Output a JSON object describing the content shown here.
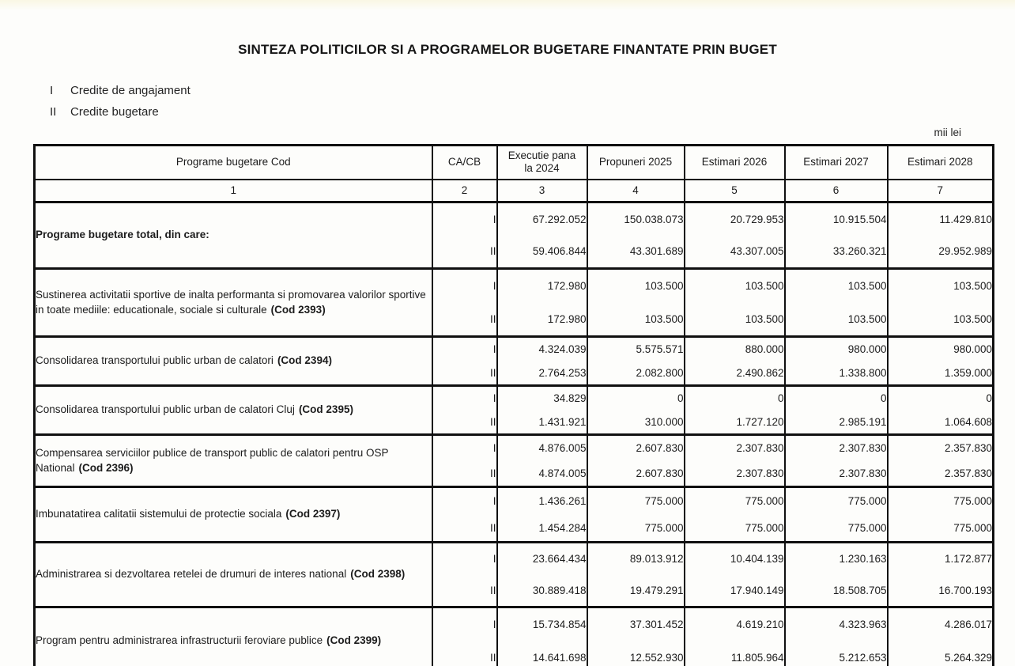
{
  "page": {
    "title": "SINTEZA POLITICILOR SI A PROGRAMELOR BUGETARE FINANTATE PRIN BUGET",
    "legend": [
      {
        "symbol": "I",
        "label": "Credite de angajament"
      },
      {
        "symbol": "II",
        "label": "Credite bugetare"
      }
    ],
    "unit_note": "mii lei"
  },
  "table": {
    "header": {
      "col1": "Programe bugetare  Cod",
      "col2": "CA/CB",
      "col3": "Executie pana\nla  2024",
      "col4": "Propuneri 2025",
      "col5": "Estimari 2026",
      "col6": "Estimari 2027",
      "col7": "Estimari 2028"
    },
    "col_indices": [
      "1",
      "2",
      "3",
      "4",
      "5",
      "6",
      "7"
    ],
    "row_symbols": [
      "I",
      "II"
    ],
    "rows": [
      {
        "name": "Programe bugetare total, din care:",
        "code": "",
        "bold_name": true,
        "I": [
          "67.292.052",
          "150.038.073",
          "20.729.953",
          "10.915.504",
          "11.429.810"
        ],
        "II": [
          "59.406.844",
          "43.301.689",
          "43.307.005",
          "33.260.321",
          "29.952.989"
        ]
      },
      {
        "name": "Sustinerea activitatii sportive de inalta performanta si promovarea valorilor sportive in toate mediile: educationale, sociale si culturale",
        "code": "(Cod 2393)",
        "bold_name": false,
        "I": [
          "172.980",
          "103.500",
          "103.500",
          "103.500",
          "103.500"
        ],
        "II": [
          "172.980",
          "103.500",
          "103.500",
          "103.500",
          "103.500"
        ]
      },
      {
        "name": "Consolidarea transportului public urban de calatori",
        "code": "(Cod 2394)",
        "bold_name": false,
        "I": [
          "4.324.039",
          "5.575.571",
          "880.000",
          "980.000",
          "980.000"
        ],
        "II": [
          "2.764.253",
          "2.082.800",
          "2.490.862",
          "1.338.800",
          "1.359.000"
        ]
      },
      {
        "name": "Consolidarea transportului public urban de calatori Cluj",
        "code": "(Cod 2395)",
        "bold_name": false,
        "I": [
          "34.829",
          "0",
          "0",
          "0",
          "0"
        ],
        "II": [
          "1.431.921",
          "310.000",
          "1.727.120",
          "2.985.191",
          "1.064.608"
        ]
      },
      {
        "name": "Compensarea serviciilor publice de transport public de calatori pentru OSP National",
        "code": "(Cod 2396)",
        "bold_name": false,
        "I": [
          "4.876.005",
          "2.607.830",
          "2.307.830",
          "2.307.830",
          "2.357.830"
        ],
        "II": [
          "4.874.005",
          "2.607.830",
          "2.307.830",
          "2.307.830",
          "2.357.830"
        ]
      },
      {
        "name": "Imbunatatirea calitatii sistemului de protectie sociala",
        "code": "(Cod 2397)",
        "bold_name": false,
        "I": [
          "1.436.261",
          "775.000",
          "775.000",
          "775.000",
          "775.000"
        ],
        "II": [
          "1.454.284",
          "775.000",
          "775.000",
          "775.000",
          "775.000"
        ]
      },
      {
        "name": "Administrarea si dezvoltarea retelei de drumuri de interes national",
        "code": "(Cod 2398)",
        "bold_name": false,
        "I": [
          "23.664.434",
          "89.013.912",
          "10.404.139",
          "1.230.163",
          "1.172.877"
        ],
        "II": [
          "30.889.418",
          "19.479.291",
          "17.940.149",
          "18.508.705",
          "16.700.193"
        ]
      },
      {
        "name": "Program pentru administrarea infrastructurii feroviare publice",
        "code": "(Cod 2399)",
        "bold_name": false,
        "I": [
          "15.734.854",
          "37.301.452",
          "4.619.210",
          "4.323.963",
          "4.286.017"
        ],
        "II": [
          "14.641.698",
          "12.552.930",
          "11.805.964",
          "5.212.653",
          "5.264.329"
        ]
      }
    ]
  }
}
